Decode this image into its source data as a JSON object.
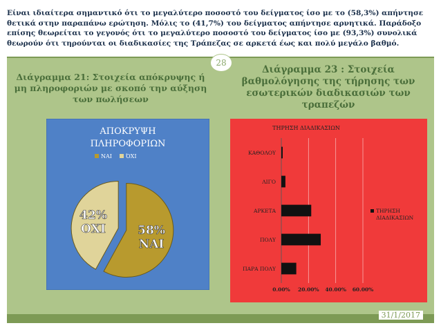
{
  "slide": {
    "top_text": "Είναι ιδιαίτερα σημαντικό ότι το μεγαλύτερο ποσοστό του δείγματος ίσο με το (58,3%) απήντησε θετικά στην παραπάνω ερώτηση. Μόλις το (41,7%) του δείγματος απήντησε αρνητικά. Παράδοξο επίσης θεωρείται το γεγονός ότι το μεγαλύτερο ποσοστό του δείγματος ίσο με (93,3%) συνολικά θεωρούν ότι τηρούνται οι διαδικασίες της Τράπεζας σε αρκετά έως και πολύ μεγάλο βαθμό.",
    "page_number": "28",
    "left_heading": "Διάγραμμα 21: Στοιχεία απόκρυψης ή μη πληροφοριών με σκοπό την αύξηση των πωλήσεων",
    "right_heading": "Διάγραμμα 23 : Στοιχεία βαθμολόγησης της τήρησης των εσωτερικών διαδικασιών των τραπεζών",
    "date": "31/1/2017"
  },
  "chart_data": [
    {
      "type": "pie",
      "title": "ΑΠΟΚΡΥΨΗ ΠΛΗΡΟΦΟΡΙΩΝ",
      "title_lines": [
        "ΑΠΟΚΡΥΨΗ",
        "ΠΛΗΡΟΦΟΡΙΩΝ"
      ],
      "categories": [
        "ΝΑΙ",
        "ΌΧΙ"
      ],
      "values": [
        58,
        42
      ],
      "slice_labels": [
        [
          "58%",
          "ΝΑΙ"
        ],
        [
          "42%",
          "ΟΧΙ"
        ]
      ],
      "legend": "top",
      "colors": [
        "#b89a2e",
        "#e0d49a"
      ],
      "background": "#4f81c7"
    },
    {
      "type": "bar",
      "orientation": "horizontal",
      "title": "ΤΗΡΗΣΗ ΔΙΑΔΙΚΑΣΙΩΝ",
      "categories": [
        "ΚΑΘΟΛΟΥ",
        "ΛΙΓΟ",
        "ΑΡΚΕΤΑ",
        "ΠΟΛΥ",
        "ΠΑΡΑ ΠΟΛΥ"
      ],
      "series": [
        {
          "name": "ΤΗΡΗΣΗ ΔΙΑΔΙΚΑΣΙΩΝ",
          "values": [
            0.01,
            0.03,
            0.22,
            0.29,
            0.11
          ]
        }
      ],
      "legend_lines": [
        "ΤΗΡΗΣΗ",
        "ΔΙΑΔΙΚΑΣΙΩΝ"
      ],
      "xticks": [
        "0.00%",
        "20.00%",
        "40.00%",
        "60.00%"
      ],
      "xlim": [
        0,
        0.6
      ],
      "grid": true,
      "legend": "right",
      "colors": [
        "#111111"
      ],
      "background": "#f03a3a"
    }
  ]
}
